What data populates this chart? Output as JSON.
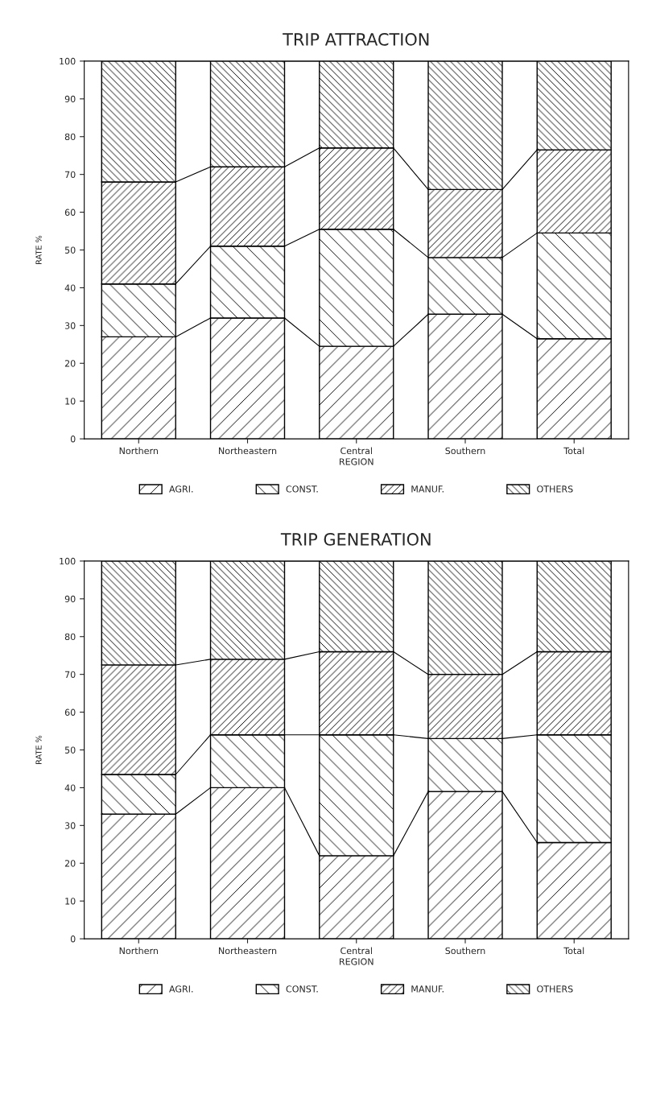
{
  "chart_data": [
    {
      "type": "bar",
      "title": "TRIP ATTRACTION",
      "xlabel": "REGION",
      "ylabel": "RATE %",
      "stacked": true,
      "legend": "bottom",
      "grid": false,
      "categories": [
        "Northern",
        "Northeastern",
        "Central",
        "Southern",
        "Total"
      ],
      "ylim": [
        0,
        100
      ],
      "yticks": [
        0,
        10,
        20,
        30,
        40,
        50,
        60,
        70,
        80,
        90,
        100
      ],
      "series": [
        {
          "name": "AGRI.",
          "color": "#000000",
          "values": [
            27,
            32,
            24.5,
            33,
            26.5
          ]
        },
        {
          "name": "CONST.",
          "color": "#000000",
          "values": [
            14,
            19,
            31,
            15,
            28
          ]
        },
        {
          "name": "MANUF.",
          "color": "#000000",
          "values": [
            27,
            21,
            21.5,
            18,
            22
          ]
        },
        {
          "name": "OTHERS",
          "color": "#000000",
          "values": [
            32,
            28,
            23,
            34,
            23.5
          ]
        }
      ]
    },
    {
      "type": "bar",
      "title": "TRIP GENERATION",
      "xlabel": "REGION",
      "ylabel": "RATE %",
      "stacked": true,
      "legend": "bottom",
      "grid": false,
      "categories": [
        "Northern",
        "Northeastern",
        "Central",
        "Southern",
        "Total"
      ],
      "ylim": [
        0,
        100
      ],
      "yticks": [
        0,
        10,
        20,
        30,
        40,
        50,
        60,
        70,
        80,
        90,
        100
      ],
      "series": [
        {
          "name": "AGRI.",
          "color": "#000000",
          "values": [
            33,
            40,
            22,
            39,
            25.5
          ]
        },
        {
          "name": "CONST.",
          "color": "#000000",
          "values": [
            10.5,
            14,
            32,
            14,
            28.5
          ]
        },
        {
          "name": "MANUF.",
          "color": "#000000",
          "values": [
            29,
            20,
            22,
            17,
            22
          ]
        },
        {
          "name": "OTHERS",
          "color": "#000000",
          "values": [
            27.5,
            26,
            24,
            30,
            24
          ]
        }
      ]
    }
  ]
}
